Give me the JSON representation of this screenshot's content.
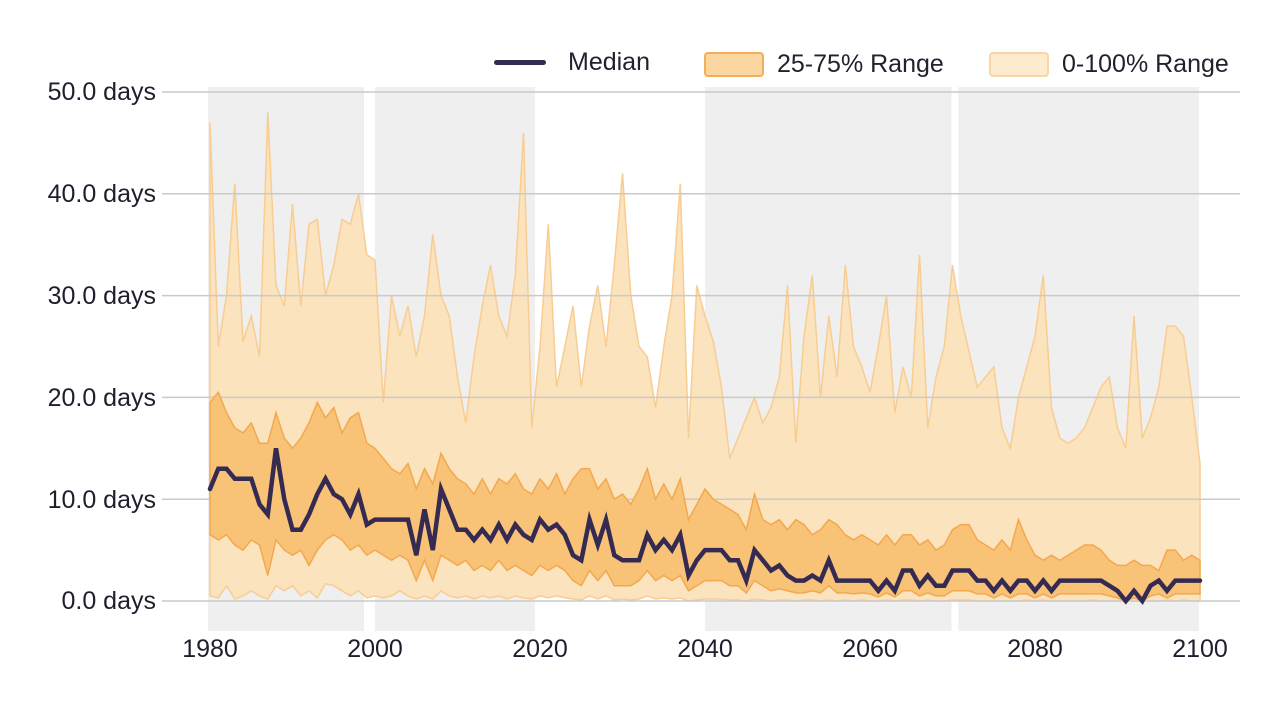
{
  "legend": {
    "items": [
      {
        "label": "Median",
        "type": "line",
        "color": "#352A52"
      },
      {
        "label": "25-75% Range",
        "type": "band",
        "fill": "#FAD7A0",
        "border": "#F5AE58"
      },
      {
        "label": "0-100% Range",
        "type": "band",
        "fill": "#FDEBD0",
        "border": "#F8D7A4"
      }
    ]
  },
  "chart_data": {
    "type": "line",
    "title": "",
    "xlabel": "",
    "ylabel": "days",
    "ylim": [
      0,
      50
    ],
    "xlim": [
      1980,
      2100
    ],
    "grid": "horizontal",
    "gridline_color": "#cacaca",
    "plot_bg": "#ffffff",
    "shaded_color": "#EFEFEF",
    "shaded_periods": [
      [
        1980,
        2000
      ],
      [
        2000,
        2020
      ],
      [
        2040,
        2070
      ],
      [
        2070,
        2100
      ]
    ],
    "yticks": [
      50,
      40,
      30,
      20,
      10,
      0
    ],
    "ytick_labels": [
      "50.0 days",
      "40.0 days",
      "30.0 days",
      "20.0 days",
      "10.0 days",
      "0.0 days"
    ],
    "xticks": [
      1980,
      2000,
      2020,
      2040,
      2060,
      2080,
      2100
    ],
    "xtick_labels": [
      "1980",
      "2000",
      "2020",
      "2040",
      "2060",
      "2080",
      "2100"
    ],
    "years": [
      1980,
      1981,
      1982,
      1983,
      1984,
      1985,
      1986,
      1987,
      1988,
      1989,
      1990,
      1991,
      1992,
      1993,
      1994,
      1995,
      1996,
      1997,
      1998,
      1999,
      2000,
      2001,
      2002,
      2003,
      2004,
      2005,
      2006,
      2007,
      2008,
      2009,
      2010,
      2011,
      2012,
      2013,
      2014,
      2015,
      2016,
      2017,
      2018,
      2019,
      2020,
      2021,
      2022,
      2023,
      2024,
      2025,
      2026,
      2027,
      2028,
      2029,
      2030,
      2031,
      2032,
      2033,
      2034,
      2035,
      2036,
      2037,
      2038,
      2039,
      2040,
      2041,
      2042,
      2043,
      2044,
      2045,
      2046,
      2047,
      2048,
      2049,
      2050,
      2051,
      2052,
      2053,
      2054,
      2055,
      2056,
      2057,
      2058,
      2059,
      2060,
      2061,
      2062,
      2063,
      2064,
      2065,
      2066,
      2067,
      2068,
      2069,
      2070,
      2071,
      2072,
      2073,
      2074,
      2075,
      2076,
      2077,
      2078,
      2079,
      2080,
      2081,
      2082,
      2083,
      2084,
      2085,
      2086,
      2087,
      2088,
      2089,
      2090,
      2091,
      2092,
      2093,
      2094,
      2095,
      2096,
      2097,
      2098,
      2099,
      2100
    ],
    "series": [
      {
        "name": "0-100% Range",
        "type": "band",
        "fill": "#FBE3BE",
        "edge": "#F8CD92",
        "upper": [
          47,
          25,
          30,
          41,
          25.5,
          28,
          24,
          48,
          31,
          29,
          39,
          29,
          37,
          37.5,
          30,
          33,
          37.5,
          37,
          40,
          34,
          33.5,
          19.5,
          30,
          26,
          29,
          24,
          28,
          36,
          30,
          28,
          22,
          17.5,
          24,
          29,
          33,
          28,
          26,
          32,
          46,
          17,
          25,
          37,
          21,
          25,
          29,
          21,
          27,
          31,
          25,
          33,
          42,
          30,
          25,
          24,
          19,
          25,
          30,
          41,
          16,
          31,
          28,
          25.5,
          21,
          14,
          16,
          18,
          20,
          17.5,
          19,
          22,
          31,
          15.5,
          26,
          32,
          20,
          28,
          22,
          33,
          25,
          23,
          20.5,
          25,
          30,
          18.5,
          23,
          20,
          34,
          17,
          22,
          25,
          33,
          28,
          24.5,
          21,
          22,
          23,
          17,
          15,
          20,
          23,
          26,
          32,
          19,
          16,
          15.5,
          16,
          17,
          19,
          21,
          22,
          17,
          15,
          28,
          16,
          18,
          21,
          27,
          27,
          26,
          20,
          13.5
        ],
        "lower": [
          0.5,
          0.3,
          1.5,
          0.2,
          0.5,
          1,
          0.5,
          0.2,
          1.5,
          1,
          1.5,
          0.5,
          1,
          0.3,
          1.7,
          1.5,
          1,
          0.5,
          1,
          0.3,
          0.5,
          0.3,
          0.5,
          1,
          0.5,
          0.2,
          0.5,
          0.2,
          1,
          0.5,
          0.3,
          0.5,
          0.2,
          0.5,
          0.3,
          0.5,
          0.2,
          0.5,
          0.3,
          0.2,
          0.5,
          0.3,
          0.5,
          0.3,
          0.2,
          0.1,
          0.5,
          0.2,
          0.5,
          0.1,
          0.2,
          0.1,
          0.2,
          0.5,
          0.2,
          0.3,
          0.2,
          0.3,
          0,
          0.1,
          0.2,
          0.2,
          0.2,
          0.1,
          0.1,
          0,
          0.2,
          0.1,
          0,
          0.1,
          0.1,
          0,
          0.1,
          0.1,
          0,
          0.1,
          0,
          0.1,
          0,
          0.1,
          0,
          0,
          0.1,
          0,
          0.1,
          0.1,
          0,
          0.1,
          0,
          0,
          0.1,
          0.1,
          0.1,
          0,
          0,
          0,
          0,
          0,
          0,
          0.1,
          0,
          0.1,
          0,
          0,
          0,
          0,
          0,
          0.1,
          0,
          0,
          0,
          0,
          0,
          0,
          0,
          0,
          0.1,
          0,
          0.1,
          0,
          0,
          0
        ]
      },
      {
        "name": "25-75% Range",
        "type": "band",
        "fill": "#F8C377",
        "edge": "#F3A84E",
        "upper": [
          19.5,
          20.5,
          18.5,
          17,
          16.5,
          17.5,
          15.5,
          15.5,
          18.5,
          16,
          15,
          16,
          17.5,
          19.5,
          18,
          19,
          16.5,
          18,
          18.5,
          15.5,
          15,
          14,
          13,
          12.5,
          13.5,
          11,
          13,
          11.5,
          14.5,
          13,
          12,
          11.5,
          10.5,
          12,
          10.5,
          12,
          11.5,
          12.5,
          11,
          10.5,
          12,
          11,
          12.5,
          10.5,
          12,
          13,
          13,
          11,
          12,
          10,
          10.5,
          9.5,
          11,
          13,
          10,
          11.5,
          10,
          12,
          8,
          9.5,
          11,
          10,
          9.5,
          9,
          8.5,
          7,
          10.5,
          8,
          7.5,
          8,
          7,
          8,
          7.5,
          6.5,
          7,
          8,
          7.5,
          6.5,
          6,
          6.5,
          6,
          5.5,
          6.5,
          5.5,
          6.5,
          6.5,
          5.5,
          6,
          5,
          5.5,
          7,
          7.5,
          7.5,
          6,
          5.5,
          5,
          6,
          5,
          8,
          6,
          4.5,
          4,
          4.5,
          4,
          4.5,
          5,
          5.5,
          5.5,
          5,
          4,
          3.5,
          3.5,
          4,
          3.5,
          3.5,
          3,
          5,
          5,
          4,
          4.5,
          4
        ],
        "lower": [
          6.5,
          6,
          6.5,
          5.5,
          5,
          6,
          5.5,
          2.5,
          6,
          5,
          4.5,
          5,
          3.5,
          5,
          6,
          6.5,
          6,
          5,
          5.5,
          4.5,
          5,
          4.5,
          4,
          4.5,
          4,
          2,
          4,
          2,
          4.5,
          4,
          3.5,
          4,
          3,
          3.5,
          3,
          4,
          3,
          3.5,
          3,
          2.5,
          3.5,
          3,
          3.5,
          3,
          2,
          1.5,
          3,
          2,
          3,
          1.5,
          1.5,
          1.5,
          2,
          3,
          2,
          2.5,
          2,
          2.5,
          1,
          1.5,
          2,
          2,
          2,
          1.5,
          1.5,
          0.8,
          2,
          1.5,
          1,
          1.2,
          1,
          0.8,
          0.8,
          1,
          0.8,
          1.5,
          0.8,
          0.8,
          0.7,
          0.8,
          0.7,
          0.4,
          0.8,
          0.4,
          1,
          1,
          0.5,
          0.8,
          0.5,
          0.5,
          1,
          1,
          1,
          0.7,
          0.7,
          0.3,
          0.7,
          0.3,
          0.7,
          0.7,
          0.3,
          0.7,
          0.3,
          0.7,
          0.7,
          0.7,
          0.7,
          0.7,
          0.7,
          0.5,
          0.3,
          0,
          0.3,
          0,
          0.5,
          0.7,
          0.3,
          0.7,
          0.7,
          0.7,
          0.7
        ]
      },
      {
        "name": "Median",
        "type": "line",
        "color": "#352A52",
        "width": 4.5,
        "values": [
          11,
          13,
          13,
          12,
          12,
          12,
          9.5,
          8.5,
          15,
          10,
          7,
          7,
          8.5,
          10.5,
          12,
          10.5,
          10,
          8.5,
          10.5,
          7.5,
          8,
          8,
          8,
          8,
          8,
          4.5,
          9,
          5,
          11,
          9,
          7,
          7,
          6,
          7,
          6,
          7.5,
          6,
          7.5,
          6.5,
          6,
          8,
          7,
          7.5,
          6.5,
          4.5,
          4,
          8,
          5.5,
          8,
          4.5,
          4,
          4,
          4,
          6.5,
          5,
          6,
          5,
          6.5,
          2.5,
          4,
          5,
          5,
          5,
          4,
          4,
          2,
          5,
          4,
          3,
          3.5,
          2.5,
          2,
          2,
          2.5,
          2,
          4,
          2,
          2,
          2,
          2,
          2,
          1,
          2,
          1,
          3,
          3,
          1.5,
          2.5,
          1.5,
          1.5,
          3,
          3,
          3,
          2,
          2,
          1,
          2,
          1,
          2,
          2,
          1,
          2,
          1,
          2,
          2,
          2,
          2,
          2,
          2,
          1.5,
          1,
          0,
          1,
          0,
          1.5,
          2,
          1,
          2,
          2,
          2,
          2
        ]
      }
    ]
  }
}
